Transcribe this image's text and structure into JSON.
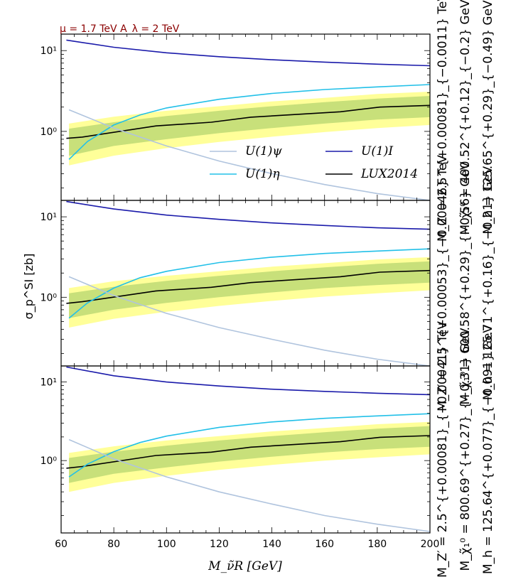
{
  "top_annotation": "μ = 1.7 TeV  A_λ = 2 TeV",
  "y_label": "σ_p^SI [zb]",
  "x_label": "M_ν̃R [GeV]",
  "chart_data": [
    {
      "type": "line",
      "panel": 1,
      "xlim": [
        60,
        200
      ],
      "ylim": [
        0.14,
        16
      ],
      "y_scale": "log",
      "x_ticks": [
        "60",
        "80",
        "100",
        "120",
        "140",
        "160",
        "180",
        "200"
      ],
      "y_ticks": [
        {
          "value": 1,
          "label": "10⁰"
        },
        {
          "value": 10,
          "label": "10¹"
        }
      ],
      "legend": {
        "placement": "center",
        "entries": [
          {
            "name": "U(1)ψ",
            "color": "#b0c4de"
          },
          {
            "name": "U(1)I",
            "color": "#1a1aaa"
          },
          {
            "name": "U(1)η",
            "color": "#22c0e8"
          },
          {
            "name": "LUX2014",
            "color": "#000000"
          }
        ]
      },
      "bands": {
        "x": [
          63,
          80,
          100,
          120,
          140,
          160,
          180,
          200
        ],
        "outer_lo": [
          0.38,
          0.5,
          0.62,
          0.74,
          0.86,
          0.98,
          1.1,
          1.2
        ],
        "outer_hi": [
          1.25,
          1.52,
          1.8,
          2.05,
          2.35,
          2.6,
          2.9,
          3.1
        ],
        "inner_lo": [
          0.5,
          0.66,
          0.8,
          0.95,
          1.1,
          1.25,
          1.4,
          1.5
        ],
        "inner_hi": [
          1.08,
          1.3,
          1.55,
          1.8,
          2.05,
          2.3,
          2.55,
          2.75
        ],
        "outer_color": "#ffff99",
        "inner_color": "#c8e07a"
      },
      "series": [
        {
          "name": "LUX2014",
          "color": "#000000",
          "x": [
            62,
            68,
            96,
            117,
            132,
            166,
            181,
            200
          ],
          "y": [
            0.82,
            0.85,
            1.17,
            1.3,
            1.5,
            1.75,
            2.0,
            2.1
          ]
        },
        {
          "name": "U(1)I",
          "color": "#1a1aaa",
          "x": [
            62,
            80,
            100,
            120,
            140,
            160,
            180,
            200
          ],
          "y": [
            13.5,
            11.0,
            9.4,
            8.4,
            7.7,
            7.2,
            6.8,
            6.5
          ]
        },
        {
          "name": "U(1)η",
          "color": "#22c0e8",
          "x": [
            63,
            70,
            80,
            90,
            100,
            120,
            140,
            160,
            180,
            200
          ],
          "y": [
            0.45,
            0.75,
            1.2,
            1.6,
            1.95,
            2.5,
            2.95,
            3.3,
            3.55,
            3.8
          ]
        },
        {
          "name": "U(1)ψ",
          "color": "#b0c4de",
          "x": [
            63,
            80,
            100,
            120,
            140,
            160,
            180,
            200
          ],
          "y": [
            1.85,
            1.1,
            0.66,
            0.43,
            0.3,
            0.22,
            0.17,
            0.14
          ]
        }
      ],
      "side_labels": [
        "M_Z′ = 2.5^{+0.00081}_{−0.0011} TeV",
        "M_χ̃₁⁰ = 400.52^{+0.12}_{−0.2} GeV",
        "M_h = 125.65^{+0.29}_{−0.49} GeV"
      ]
    },
    {
      "type": "line",
      "panel": 2,
      "xlim": [
        60,
        200
      ],
      "ylim": [
        0.14,
        16
      ],
      "y_scale": "log",
      "x_ticks": [
        "60",
        "80",
        "100",
        "120",
        "140",
        "160",
        "180",
        "200"
      ],
      "y_ticks": [
        {
          "value": 1,
          "label": "10⁰"
        },
        {
          "value": 10,
          "label": "10¹"
        }
      ],
      "bands": {
        "x": [
          63,
          80,
          100,
          120,
          140,
          160,
          180,
          200
        ],
        "outer_lo": [
          0.42,
          0.54,
          0.66,
          0.78,
          0.9,
          1.02,
          1.12,
          1.22
        ],
        "outer_hi": [
          1.3,
          1.58,
          1.85,
          2.1,
          2.4,
          2.65,
          2.95,
          3.15
        ],
        "inner_lo": [
          0.55,
          0.7,
          0.85,
          1.0,
          1.15,
          1.3,
          1.42,
          1.52
        ],
        "inner_hi": [
          1.12,
          1.35,
          1.6,
          1.85,
          2.1,
          2.35,
          2.6,
          2.8
        ],
        "outer_color": "#ffff99",
        "inner_color": "#c8e07a"
      },
      "series": [
        {
          "name": "LUX2014",
          "color": "#000000",
          "x": [
            62,
            68,
            96,
            117,
            132,
            166,
            181,
            200
          ],
          "y": [
            0.84,
            0.88,
            1.2,
            1.33,
            1.52,
            1.8,
            2.05,
            2.15
          ]
        },
        {
          "name": "U(1)I",
          "color": "#1a1aaa",
          "x": [
            62,
            80,
            100,
            120,
            140,
            160,
            180,
            200
          ],
          "y": [
            15.5,
            12.5,
            10.5,
            9.3,
            8.4,
            7.8,
            7.3,
            7.0
          ]
        },
        {
          "name": "U(1)η",
          "color": "#22c0e8",
          "x": [
            63,
            70,
            80,
            90,
            100,
            120,
            140,
            160,
            180,
            200
          ],
          "y": [
            0.55,
            0.85,
            1.3,
            1.75,
            2.1,
            2.7,
            3.15,
            3.5,
            3.75,
            4.0
          ]
        },
        {
          "name": "U(1)ψ",
          "color": "#b0c4de",
          "x": [
            63,
            80,
            100,
            120,
            140,
            160,
            180,
            200
          ],
          "y": [
            1.8,
            1.05,
            0.63,
            0.42,
            0.3,
            0.22,
            0.17,
            0.14
          ]
        }
      ],
      "side_labels": [
        "M_Z′ = 2.5^{+0.00053}_{−0.00046} TeV",
        "M_χ̃₁⁰ = 600.58^{+0.29}_{−0.56} GeV",
        "M_h = 125.71^{+0.16}_{−0.21} GeV"
      ]
    },
    {
      "type": "line",
      "panel": 3,
      "xlim": [
        60,
        200
      ],
      "ylim": [
        0.12,
        16
      ],
      "y_scale": "log",
      "x_ticks": [
        "60",
        "80",
        "100",
        "120",
        "140",
        "160",
        "180",
        "200"
      ],
      "y_ticks": [
        {
          "value": 1,
          "label": "10⁰"
        },
        {
          "value": 10,
          "label": "10¹"
        }
      ],
      "bands": {
        "x": [
          63,
          80,
          100,
          120,
          140,
          160,
          180,
          200
        ],
        "outer_lo": [
          0.4,
          0.52,
          0.64,
          0.76,
          0.88,
          1.0,
          1.1,
          1.2
        ],
        "outer_hi": [
          1.25,
          1.52,
          1.8,
          2.05,
          2.35,
          2.6,
          2.9,
          3.1
        ],
        "inner_lo": [
          0.52,
          0.68,
          0.82,
          0.97,
          1.12,
          1.27,
          1.4,
          1.5
        ],
        "inner_hi": [
          1.08,
          1.3,
          1.55,
          1.8,
          2.05,
          2.3,
          2.55,
          2.75
        ],
        "outer_color": "#ffff99",
        "inner_color": "#c8e07a"
      },
      "series": [
        {
          "name": "LUX2014",
          "color": "#000000",
          "x": [
            62,
            68,
            96,
            117,
            132,
            166,
            181,
            200
          ],
          "y": [
            0.8,
            0.84,
            1.16,
            1.28,
            1.48,
            1.74,
            1.98,
            2.08
          ]
        },
        {
          "name": "U(1)I",
          "color": "#1a1aaa",
          "x": [
            62,
            80,
            100,
            120,
            140,
            160,
            180,
            200
          ],
          "y": [
            15.5,
            12.0,
            10.0,
            8.9,
            8.1,
            7.6,
            7.2,
            6.9
          ]
        },
        {
          "name": "U(1)η",
          "color": "#22c0e8",
          "x": [
            63,
            70,
            80,
            90,
            100,
            120,
            140,
            160,
            180,
            200
          ],
          "y": [
            0.62,
            0.9,
            1.3,
            1.7,
            2.05,
            2.65,
            3.1,
            3.45,
            3.7,
            3.95
          ]
        },
        {
          "name": "U(1)ψ",
          "color": "#b0c4de",
          "x": [
            63,
            80,
            100,
            120,
            140,
            160,
            180,
            200
          ],
          "y": [
            1.85,
            1.05,
            0.62,
            0.4,
            0.28,
            0.2,
            0.155,
            0.125
          ]
        }
      ],
      "side_labels": [
        "M_Z′ = 2.5^{+0.00081}_{−0.00041} TeV",
        "M_χ̃₁⁰ = 800.69^{+0.27}_{−0.31} GeV",
        "M_h = 125.64^{+0.077}_{−0.091} GeV"
      ]
    }
  ]
}
